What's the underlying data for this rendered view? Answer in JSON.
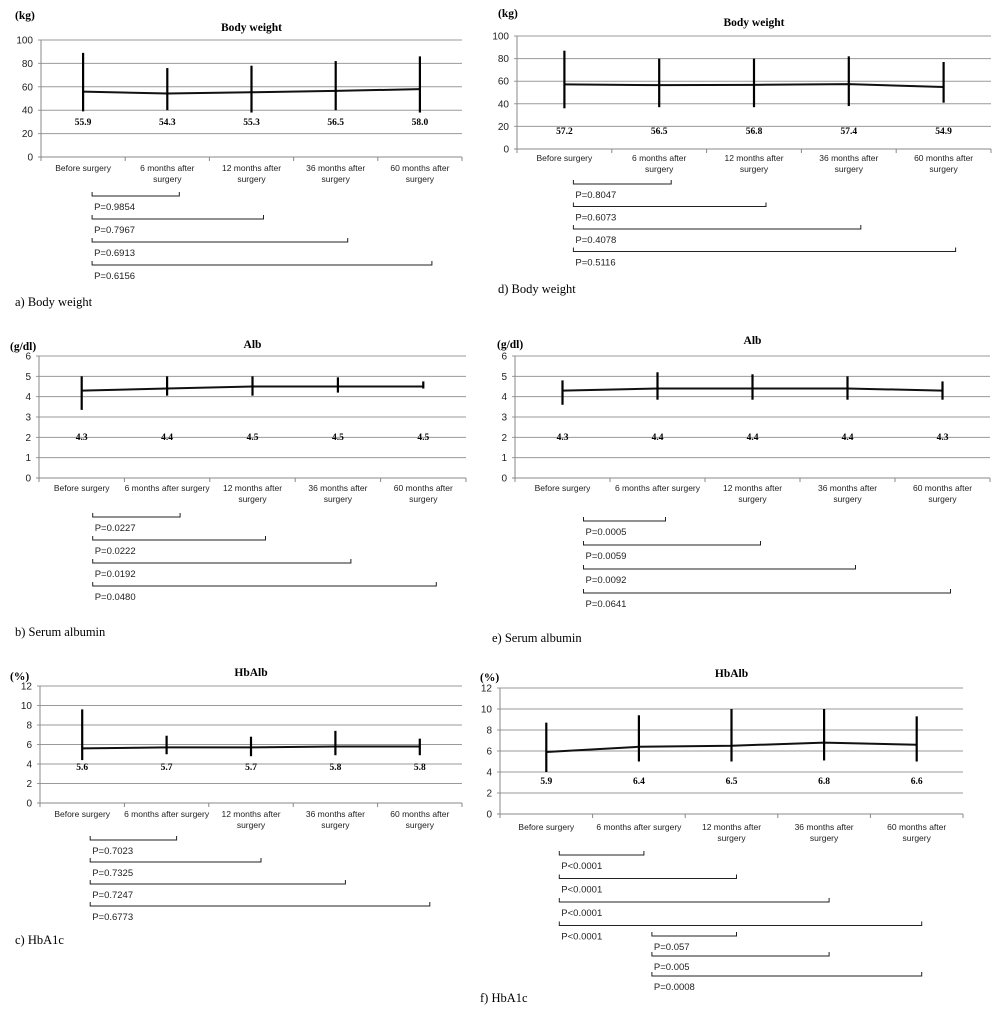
{
  "chart_data": [
    {
      "panel": "a",
      "type": "line",
      "caption": "a) Body weight",
      "title": "Body weight",
      "ylabel": "(kg)",
      "categories": [
        "Before surgery",
        "6 months after surgery",
        "12 months after surgery",
        "36 months after surgery",
        "60 months after surgery"
      ],
      "ylim": [
        0,
        100
      ],
      "yticks": [
        0,
        20,
        40,
        60,
        80,
        100
      ],
      "grid": true,
      "values": [
        55.9,
        54.3,
        55.3,
        56.5,
        58.0
      ],
      "error_low": [
        39,
        40,
        38,
        40,
        38
      ],
      "error_high": [
        89,
        76,
        78,
        82,
        86
      ],
      "value_labels": [
        "55.9",
        "54.3",
        "55.3",
        "56.5",
        "58.0"
      ],
      "comparisons": [
        {
          "from": 0,
          "to": 1,
          "label": "P=0.9854"
        },
        {
          "from": 0,
          "to": 2,
          "label": "P=0.7967"
        },
        {
          "from": 0,
          "to": 3,
          "label": "P=0.6913"
        },
        {
          "from": 0,
          "to": 4,
          "label": "P=0.6156"
        }
      ]
    },
    {
      "panel": "d",
      "type": "line",
      "caption": "d) Body weight",
      "title": "Body weight",
      "ylabel": "(kg)",
      "categories": [
        "Before surgery",
        "6 months after surgery",
        "12 months after surgery",
        "36 months after surgery",
        "60 months after surgery"
      ],
      "ylim": [
        0,
        100
      ],
      "yticks": [
        0,
        20,
        40,
        60,
        80,
        100
      ],
      "grid": true,
      "values": [
        57.2,
        56.5,
        56.8,
        57.4,
        54.9
      ],
      "error_low": [
        36,
        37,
        37,
        38,
        41
      ],
      "error_high": [
        87,
        80,
        80,
        82,
        77
      ],
      "value_labels": [
        "57.2",
        "56.5",
        "56.8",
        "57.4",
        "54.9"
      ],
      "comparisons": [
        {
          "from": 0,
          "to": 1,
          "label": "P=0.8047"
        },
        {
          "from": 0,
          "to": 2,
          "label": "P=0.6073"
        },
        {
          "from": 0,
          "to": 3,
          "label": "P=0.4078"
        },
        {
          "from": 0,
          "to": 4,
          "label": "P=0.5116"
        }
      ]
    },
    {
      "panel": "b",
      "type": "line",
      "caption": "b) Serum albumin",
      "title": "Alb",
      "ylabel": "(g/dl)",
      "categories": [
        "Before surgery",
        "6 months after surgery",
        "12 months after surgery",
        "36 months after surgery",
        "60 months after surgery"
      ],
      "ylim": [
        0,
        6
      ],
      "yticks": [
        0,
        1,
        2,
        3,
        4,
        5,
        6
      ],
      "grid": true,
      "values": [
        4.3,
        4.4,
        4.5,
        4.5,
        4.5
      ],
      "error_low": [
        3.35,
        4.05,
        4.05,
        4.2,
        4.4
      ],
      "error_high": [
        5.0,
        5.0,
        5.0,
        4.95,
        4.75
      ],
      "value_labels": [
        "4.3",
        "4.4",
        "4.5",
        "4.5",
        "4.5"
      ],
      "comparisons": [
        {
          "from": 0,
          "to": 1,
          "label": "P=0.0227"
        },
        {
          "from": 0,
          "to": 2,
          "label": "P=0.0222"
        },
        {
          "from": 0,
          "to": 3,
          "label": "P=0.0192"
        },
        {
          "from": 0,
          "to": 4,
          "label": "P=0.0480"
        }
      ]
    },
    {
      "panel": "e",
      "type": "line",
      "caption": "e) Serum albumin",
      "title": "Alb",
      "ylabel": "(g/dl)",
      "categories": [
        "Before surgery",
        "6 months after surgery",
        "12 months after surgery",
        "36 months after surgery",
        "60 months after surgery"
      ],
      "ylim": [
        0,
        6
      ],
      "yticks": [
        0,
        1,
        2,
        3,
        4,
        5,
        6
      ],
      "grid": true,
      "values": [
        4.3,
        4.4,
        4.4,
        4.4,
        4.3
      ],
      "error_low": [
        3.6,
        3.85,
        3.85,
        3.85,
        3.85
      ],
      "error_high": [
        4.8,
        5.2,
        5.1,
        5.0,
        4.75
      ],
      "value_labels": [
        "4.3",
        "4.4",
        "4.4",
        "4.4",
        "4.3"
      ],
      "comparisons": [
        {
          "from": 0,
          "to": 1,
          "label": "P=0.0005"
        },
        {
          "from": 0,
          "to": 2,
          "label": "P=0.0059"
        },
        {
          "from": 0,
          "to": 3,
          "label": "P=0.0092"
        },
        {
          "from": 0,
          "to": 4,
          "label": "P=0.0641"
        }
      ]
    },
    {
      "panel": "c",
      "type": "line",
      "caption": "c) HbA1c",
      "title": "HbAlb",
      "ylabel": "(%)",
      "categories": [
        "Before surgery",
        "6 months after surgery",
        "12 months after surgery",
        "36 months after surgery",
        "60 months after surgery"
      ],
      "ylim": [
        0,
        12
      ],
      "yticks": [
        0,
        2,
        4,
        6,
        8,
        10,
        12
      ],
      "grid": true,
      "values": [
        5.6,
        5.7,
        5.7,
        5.8,
        5.8
      ],
      "error_low": [
        4.4,
        5.0,
        4.8,
        4.9,
        4.9
      ],
      "error_high": [
        9.6,
        6.9,
        6.8,
        7.4,
        6.6
      ],
      "value_labels": [
        "5.6",
        "5.7",
        "5.7",
        "5.8",
        "5.8"
      ],
      "comparisons": [
        {
          "from": 0,
          "to": 1,
          "label": "P=0.7023"
        },
        {
          "from": 0,
          "to": 2,
          "label": "P=0.7325"
        },
        {
          "from": 0,
          "to": 3,
          "label": "P=0.7247"
        },
        {
          "from": 0,
          "to": 4,
          "label": "P=0.6773"
        }
      ]
    },
    {
      "panel": "f",
      "type": "line",
      "caption": "f) HbA1c",
      "title": "HbAlb",
      "ylabel": "(%)",
      "categories": [
        "Before surgery",
        "6 months after surgery",
        "12 months after surgery",
        "36 months after surgery",
        "60 months after surgery"
      ],
      "ylim": [
        0,
        12
      ],
      "yticks": [
        0,
        2,
        4,
        6,
        8,
        10,
        12
      ],
      "grid": true,
      "values": [
        5.9,
        6.4,
        6.5,
        6.8,
        6.6
      ],
      "error_low": [
        4.0,
        5.0,
        5.0,
        5.1,
        5.0
      ],
      "error_high": [
        8.7,
        9.4,
        10.0,
        10.0,
        9.3
      ],
      "value_labels": [
        "5.9",
        "6.4",
        "6.5",
        "6.8",
        "6.6"
      ],
      "comparisons": [
        {
          "from": 0,
          "to": 1,
          "label": "P<0.0001"
        },
        {
          "from": 0,
          "to": 2,
          "label": "P<0.0001"
        },
        {
          "from": 0,
          "to": 3,
          "label": "P<0.0001"
        },
        {
          "from": 0,
          "to": 4,
          "label": "P<0.0001"
        },
        {
          "from": 1,
          "to": 2,
          "label": "P=0.057"
        },
        {
          "from": 1,
          "to": 3,
          "label": "P=0.005"
        },
        {
          "from": 1,
          "to": 4,
          "label": "P=0.0008"
        }
      ]
    }
  ]
}
